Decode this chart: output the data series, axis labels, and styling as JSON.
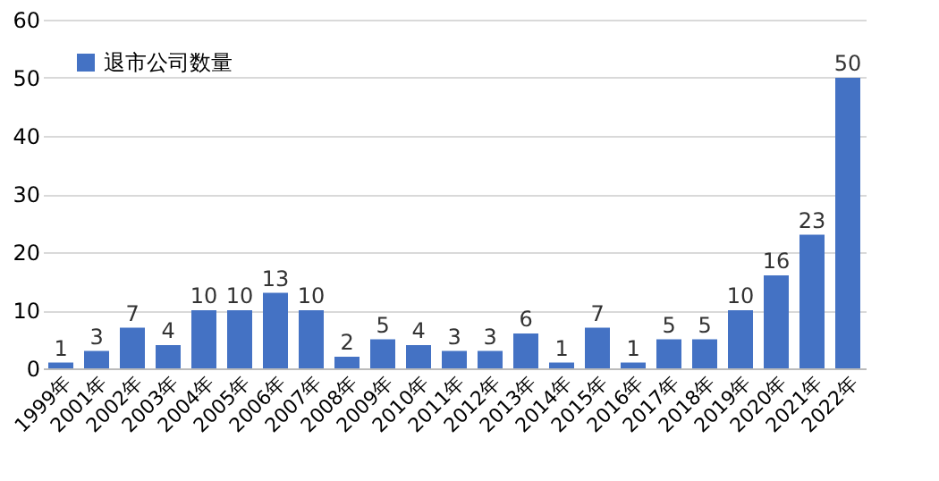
{
  "chart_data": {
    "type": "bar",
    "categories": [
      "1999年",
      "2001年",
      "2002年",
      "2003年",
      "2004年",
      "2005年",
      "2006年",
      "2007年",
      "2008年",
      "2009年",
      "2010年",
      "2011年",
      "2012年",
      "2013年",
      "2014年",
      "2015年",
      "2016年",
      "2017年",
      "2018年",
      "2019年",
      "2020年",
      "2021年",
      "2022年"
    ],
    "series": [
      {
        "name": "退市公司数量",
        "color": "#4472c4",
        "values": [
          1,
          3,
          7,
          4,
          10,
          10,
          13,
          10,
          2,
          5,
          4,
          3,
          3,
          6,
          1,
          7,
          1,
          5,
          5,
          10,
          16,
          23,
          50
        ]
      }
    ],
    "ylim": [
      0,
      60
    ],
    "yticks": [
      0,
      10,
      20,
      30,
      40,
      50,
      60
    ],
    "grid": "y",
    "legend": "top left",
    "data_labels": true
  }
}
